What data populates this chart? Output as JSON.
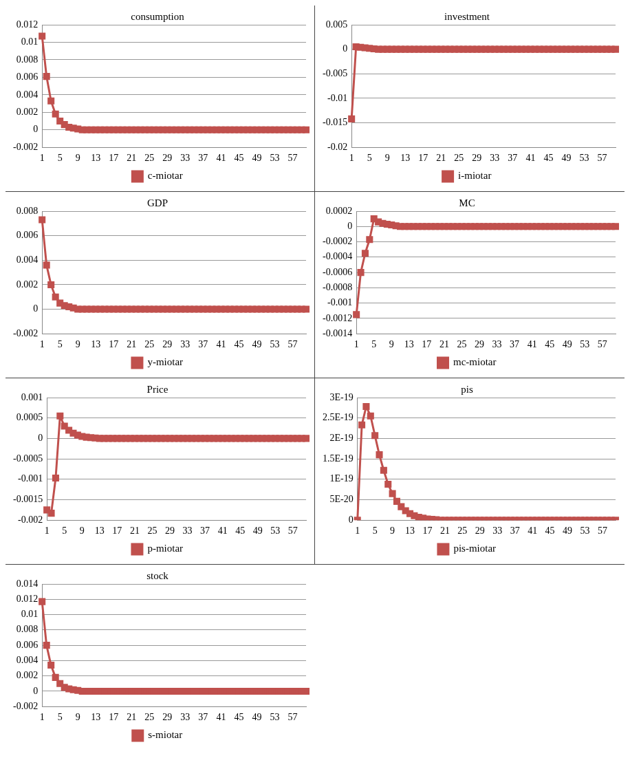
{
  "chart_data": [
    {
      "type": "line",
      "title": "consumption",
      "categories": [
        "1",
        null,
        null,
        null,
        "5",
        null,
        null,
        null,
        "9",
        null,
        null,
        null,
        "13",
        null,
        null,
        null,
        "17",
        null,
        null,
        null,
        "21",
        null,
        null,
        null,
        "25",
        null,
        null,
        null,
        "29",
        null,
        null,
        null,
        "33",
        null,
        null,
        null,
        "37",
        null,
        null,
        null,
        "41",
        null,
        null,
        null,
        "45",
        null,
        null,
        null,
        "49",
        null,
        null,
        null,
        "53",
        null,
        null,
        null,
        "57",
        null,
        null,
        null
      ],
      "series": [
        {
          "name": "c-miotar",
          "color": "#c0504d",
          "values": [
            0.0107,
            0.0061,
            0.0033,
            0.0018,
            0.001,
            0.0006,
            0.0003,
            0.0002,
            0.0001,
            0,
            0,
            0,
            0,
            0,
            0,
            0,
            0,
            0,
            0,
            0,
            0,
            0,
            0,
            0,
            0,
            0,
            0,
            0,
            0,
            0,
            0,
            0,
            0,
            0,
            0,
            0,
            0,
            0,
            0,
            0,
            0,
            0,
            0,
            0,
            0,
            0,
            0,
            0,
            0,
            0,
            0,
            0,
            0,
            0,
            0,
            0,
            0,
            0,
            0,
            0
          ]
        }
      ],
      "ylim": [
        -0.002,
        0.012
      ],
      "yticks": [
        -0.002,
        0,
        0.002,
        0.004,
        0.006,
        0.008,
        0.01,
        0.012
      ],
      "grid": "y",
      "legend": "bottom",
      "marker": "square"
    },
    {
      "type": "line",
      "title": "investment",
      "categories": [
        "1",
        null,
        null,
        null,
        "5",
        null,
        null,
        null,
        "9",
        null,
        null,
        null,
        "13",
        null,
        null,
        null,
        "17",
        null,
        null,
        null,
        "21",
        null,
        null,
        null,
        "25",
        null,
        null,
        null,
        "29",
        null,
        null,
        null,
        "33",
        null,
        null,
        null,
        "37",
        null,
        null,
        null,
        "41",
        null,
        null,
        null,
        "45",
        null,
        null,
        null,
        "49",
        null,
        null,
        null,
        "53",
        null,
        null,
        null,
        "57",
        null,
        null,
        null
      ],
      "series": [
        {
          "name": "i-miotar",
          "color": "#c0504d",
          "values": [
            -0.0142,
            0.0005,
            0.0004,
            0.0003,
            0.0002,
            0.0001,
            0,
            0,
            0,
            0,
            0,
            0,
            0,
            0,
            0,
            0,
            0,
            0,
            0,
            0,
            0,
            0,
            0,
            0,
            0,
            0,
            0,
            0,
            0,
            0,
            0,
            0,
            0,
            0,
            0,
            0,
            0,
            0,
            0,
            0,
            0,
            0,
            0,
            0,
            0,
            0,
            0,
            0,
            0,
            0,
            0,
            0,
            0,
            0,
            0,
            0,
            0,
            0,
            0,
            0
          ]
        }
      ],
      "ylim": [
        -0.02,
        0.005
      ],
      "yticks": [
        -0.02,
        -0.015,
        -0.01,
        -0.005,
        0,
        0.005
      ],
      "grid": "y",
      "legend": "bottom",
      "marker": "square"
    },
    {
      "type": "line",
      "title": "GDP",
      "categories": [
        "1",
        null,
        null,
        null,
        "5",
        null,
        null,
        null,
        "9",
        null,
        null,
        null,
        "13",
        null,
        null,
        null,
        "17",
        null,
        null,
        null,
        "21",
        null,
        null,
        null,
        "25",
        null,
        null,
        null,
        "29",
        null,
        null,
        null,
        "33",
        null,
        null,
        null,
        "37",
        null,
        null,
        null,
        "41",
        null,
        null,
        null,
        "45",
        null,
        null,
        null,
        "49",
        null,
        null,
        null,
        "53",
        null,
        null,
        null,
        "57",
        null,
        null,
        null
      ],
      "series": [
        {
          "name": "y-miotar",
          "color": "#c0504d",
          "values": [
            0.0073,
            0.0036,
            0.002,
            0.001,
            0.0005,
            0.0003,
            0.0002,
            0.0001,
            0,
            0,
            0,
            0,
            0,
            0,
            0,
            0,
            0,
            0,
            0,
            0,
            0,
            0,
            0,
            0,
            0,
            0,
            0,
            0,
            0,
            0,
            0,
            0,
            0,
            0,
            0,
            0,
            0,
            0,
            0,
            0,
            0,
            0,
            0,
            0,
            0,
            0,
            0,
            0,
            0,
            0,
            0,
            0,
            0,
            0,
            0,
            0,
            0,
            0,
            0,
            0
          ]
        }
      ],
      "ylim": [
        -0.002,
        0.008
      ],
      "yticks": [
        -0.002,
        0,
        0.002,
        0.004,
        0.006,
        0.008
      ],
      "grid": "y",
      "legend": "bottom",
      "marker": "square"
    },
    {
      "type": "line",
      "title": "MC",
      "categories": [
        "1",
        null,
        null,
        null,
        "5",
        null,
        null,
        null,
        "9",
        null,
        null,
        null,
        "13",
        null,
        null,
        null,
        "17",
        null,
        null,
        null,
        "21",
        null,
        null,
        null,
        "25",
        null,
        null,
        null,
        "29",
        null,
        null,
        null,
        "33",
        null,
        null,
        null,
        "37",
        null,
        null,
        null,
        "41",
        null,
        null,
        null,
        "45",
        null,
        null,
        null,
        "49",
        null,
        null,
        null,
        "53",
        null,
        null,
        null,
        "57",
        null,
        null,
        null
      ],
      "series": [
        {
          "name": "mc-miotar",
          "color": "#c0504d",
          "values": [
            -0.00115,
            -0.0006,
            -0.00035,
            -0.00017,
            0.0001,
            6e-05,
            4e-05,
            3e-05,
            2e-05,
            1e-05,
            0,
            0,
            0,
            0,
            0,
            0,
            0,
            0,
            0,
            0,
            0,
            0,
            0,
            0,
            0,
            0,
            0,
            0,
            0,
            0,
            0,
            0,
            0,
            0,
            0,
            0,
            0,
            0,
            0,
            0,
            0,
            0,
            0,
            0,
            0,
            0,
            0,
            0,
            0,
            0,
            0,
            0,
            0,
            0,
            0,
            0,
            0,
            0,
            0,
            0
          ]
        }
      ],
      "ylim": [
        -0.0014,
        0.0002
      ],
      "yticks": [
        -0.0014,
        -0.0012,
        -0.001,
        -0.0008,
        -0.0006,
        -0.0004,
        -0.0002,
        0,
        0.0002
      ],
      "grid": "y",
      "legend": "bottom",
      "marker": "square"
    },
    {
      "type": "line",
      "title": "Price",
      "categories": [
        "1",
        null,
        null,
        null,
        "5",
        null,
        null,
        null,
        "9",
        null,
        null,
        null,
        "13",
        null,
        null,
        null,
        "17",
        null,
        null,
        null,
        "21",
        null,
        null,
        null,
        "25",
        null,
        null,
        null,
        "29",
        null,
        null,
        null,
        "33",
        null,
        null,
        null,
        "37",
        null,
        null,
        null,
        "41",
        null,
        null,
        null,
        "45",
        null,
        null,
        null,
        "49",
        null,
        null,
        null,
        "53",
        null,
        null,
        null,
        "57",
        null,
        null,
        null
      ],
      "series": [
        {
          "name": "p-miotar",
          "color": "#c0504d",
          "values": [
            -0.00175,
            -0.00183,
            -0.00097,
            0.00055,
            0.0003,
            0.0002,
            0.00013,
            8e-05,
            5e-05,
            3e-05,
            2e-05,
            1e-05,
            0,
            0,
            0,
            0,
            0,
            0,
            0,
            0,
            0,
            0,
            0,
            0,
            0,
            0,
            0,
            0,
            0,
            0,
            0,
            0,
            0,
            0,
            0,
            0,
            0,
            0,
            0,
            0,
            0,
            0,
            0,
            0,
            0,
            0,
            0,
            0,
            0,
            0,
            0,
            0,
            0,
            0,
            0,
            0,
            0,
            0,
            0,
            0
          ]
        }
      ],
      "ylim": [
        -0.002,
        0.001
      ],
      "yticks": [
        -0.002,
        -0.0015,
        -0.001,
        -0.0005,
        0,
        0.0005,
        0.001
      ],
      "grid": "y",
      "legend": "bottom",
      "marker": "square"
    },
    {
      "type": "line",
      "title": "pis",
      "categories": [
        "1",
        null,
        null,
        null,
        "5",
        null,
        null,
        null,
        "9",
        null,
        null,
        null,
        "13",
        null,
        null,
        null,
        "17",
        null,
        null,
        null,
        "21",
        null,
        null,
        null,
        "25",
        null,
        null,
        null,
        "29",
        null,
        null,
        null,
        "33",
        null,
        null,
        null,
        "37",
        null,
        null,
        null,
        "41",
        null,
        null,
        null,
        "45",
        null,
        null,
        null,
        "49",
        null,
        null,
        null,
        "53",
        null,
        null,
        null,
        "57",
        null,
        null,
        null
      ],
      "series": [
        {
          "name": "pis-miotar",
          "color": "#c0504d",
          "values": [
            0,
            2.33e-19,
            2.78e-19,
            2.55e-19,
            2.07e-19,
            1.6e-19,
            1.22e-19,
            8.8e-20,
            6.5e-20,
            4.6e-20,
            3.3e-20,
            2.3e-20,
            1.6e-20,
            1.1e-20,
            7e-21,
            5e-21,
            3e-21,
            2e-21,
            1e-21,
            0,
            0,
            0,
            0,
            0,
            0,
            0,
            0,
            0,
            0,
            0,
            0,
            0,
            0,
            0,
            0,
            0,
            0,
            0,
            0,
            0,
            0,
            0,
            0,
            0,
            0,
            0,
            0,
            0,
            0,
            0,
            0,
            0,
            0,
            0,
            0,
            0,
            0,
            0,
            0,
            0
          ]
        }
      ],
      "ylim": [
        0,
        3e-19
      ],
      "yticks": [
        0,
        {
          "value": 5e-20,
          "label": "5E-20"
        },
        {
          "value": 1e-19,
          "label": "1E-19"
        },
        {
          "value": 1.5e-19,
          "label": "1.5E-19"
        },
        {
          "value": 2e-19,
          "label": "2E-19"
        },
        {
          "value": 2.5e-19,
          "label": "2.5E-19"
        },
        {
          "value": 3e-19,
          "label": "3E-19"
        }
      ],
      "grid": "y",
      "legend": "bottom",
      "marker": "square"
    },
    {
      "type": "line",
      "title": "stock",
      "categories": [
        "1",
        null,
        null,
        null,
        "5",
        null,
        null,
        null,
        "9",
        null,
        null,
        null,
        "13",
        null,
        null,
        null,
        "17",
        null,
        null,
        null,
        "21",
        null,
        null,
        null,
        "25",
        null,
        null,
        null,
        "29",
        null,
        null,
        null,
        "33",
        null,
        null,
        null,
        "37",
        null,
        null,
        null,
        "41",
        null,
        null,
        null,
        "45",
        null,
        null,
        null,
        "49",
        null,
        null,
        null,
        "53",
        null,
        null,
        null,
        "57",
        null,
        null,
        null
      ],
      "series": [
        {
          "name": "s-miotar",
          "color": "#c0504d",
          "values": [
            0.0117,
            0.006,
            0.0034,
            0.0018,
            0.001,
            0.0005,
            0.0003,
            0.0002,
            0.0001,
            0,
            0,
            0,
            0,
            0,
            0,
            0,
            0,
            0,
            0,
            0,
            0,
            0,
            0,
            0,
            0,
            0,
            0,
            0,
            0,
            0,
            0,
            0,
            0,
            0,
            0,
            0,
            0,
            0,
            0,
            0,
            0,
            0,
            0,
            0,
            0,
            0,
            0,
            0,
            0,
            0,
            0,
            0,
            0,
            0,
            0,
            0,
            0,
            0,
            0,
            0
          ]
        }
      ],
      "ylim": [
        -0.002,
        0.014
      ],
      "yticks": [
        -0.002,
        0,
        0.002,
        0.004,
        0.006,
        0.008,
        0.01,
        0.012,
        0.014
      ],
      "grid": "y",
      "legend": "bottom",
      "marker": "square"
    }
  ]
}
